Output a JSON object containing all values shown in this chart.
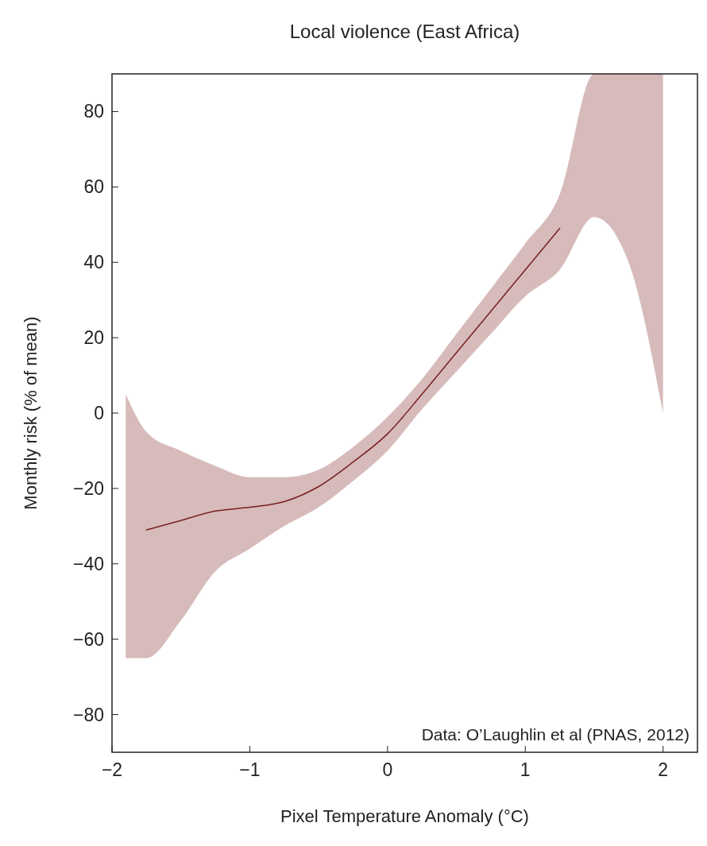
{
  "chart_data": {
    "type": "line",
    "title": "Local violence (East Africa)",
    "xlabel": "Pixel Temperature Anomaly (°C)",
    "ylabel": "Monthly risk (% of mean)",
    "annotations": [
      "Data: O’Laughlin et al (PNAS, 2012)"
    ],
    "x": [
      -1.9,
      -1.75,
      -1.5,
      -1.25,
      -1.0,
      -0.75,
      -0.5,
      -0.25,
      0,
      0.25,
      0.5,
      0.75,
      1.0,
      1.25,
      1.5,
      1.75,
      2.0
    ],
    "series": [
      {
        "color": "#7a1f1f",
        "values": [
          null,
          -31,
          -28.5,
          -26,
          -25,
          -23.5,
          -19.5,
          -13,
          -5.5,
          5,
          16,
          27,
          38,
          49,
          null,
          null,
          null
        ],
        "lower": [
          -65,
          -65,
          -55,
          -42,
          -36,
          -30,
          -25,
          -18,
          -10,
          1,
          11,
          21,
          31,
          38,
          52,
          40,
          0
        ],
        "upper": [
          5,
          -5,
          -10,
          -14,
          -17,
          -17,
          -15,
          -9,
          -1,
          9,
          21,
          33,
          45,
          58,
          90,
          90,
          90
        ]
      }
    ],
    "xlim": [
      -2,
      2.25
    ],
    "ylim": [
      -90,
      90
    ],
    "xticks": [
      -2,
      -1,
      0,
      1,
      2
    ],
    "yticks": [
      -80,
      -60,
      -40,
      -20,
      0,
      20,
      40,
      60,
      80
    ],
    "grid": false,
    "marker": "none",
    "line_style": "solid"
  }
}
